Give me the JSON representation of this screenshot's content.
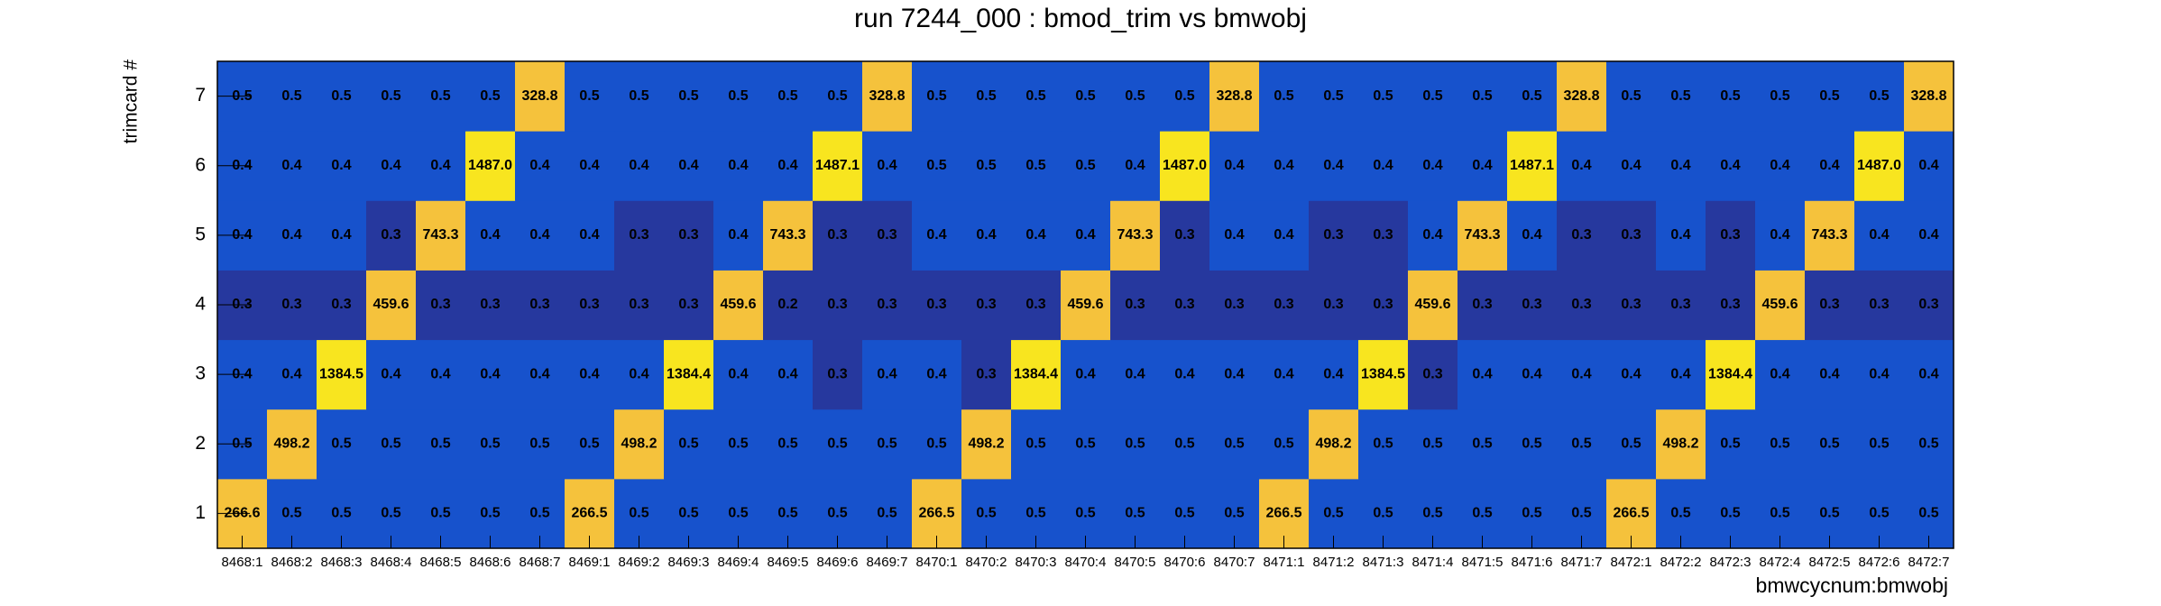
{
  "chart_data": {
    "type": "heatmap",
    "title": "run 7244_000 : bmod_trim vs bmwobj",
    "x_label": "bmwcycnum:bmwobj",
    "y_label": "trimcard #",
    "x_categories": [
      "8468:1",
      "8468:2",
      "8468:3",
      "8468:4",
      "8468:5",
      "8468:6",
      "8468:7",
      "8469:1",
      "8469:2",
      "8469:3",
      "8469:4",
      "8469:5",
      "8469:6",
      "8469:7",
      "8470:1",
      "8470:2",
      "8470:3",
      "8470:4",
      "8470:5",
      "8470:6",
      "8470:7",
      "8471:1",
      "8471:2",
      "8471:3",
      "8471:4",
      "8471:5",
      "8471:6",
      "8471:7",
      "8472:1",
      "8472:2",
      "8472:3",
      "8472:4",
      "8472:5",
      "8472:6",
      "8472:7"
    ],
    "y_categories": [
      1,
      2,
      3,
      4,
      5,
      6,
      7
    ],
    "values": [
      [
        266.6,
        0.5,
        0.5,
        0.5,
        0.5,
        0.5,
        0.5,
        266.5,
        0.5,
        0.5,
        0.5,
        0.5,
        0.5,
        0.5,
        266.5,
        0.5,
        0.5,
        0.5,
        0.5,
        0.5,
        0.5,
        266.5,
        0.5,
        0.5,
        0.5,
        0.5,
        0.5,
        0.5,
        266.5,
        0.5,
        0.5,
        0.5,
        0.5,
        0.5,
        0.5
      ],
      [
        0.5,
        498.2,
        0.5,
        0.5,
        0.5,
        0.5,
        0.5,
        0.5,
        498.2,
        0.5,
        0.5,
        0.5,
        0.5,
        0.5,
        0.5,
        498.2,
        0.5,
        0.5,
        0.5,
        0.5,
        0.5,
        0.5,
        498.2,
        0.5,
        0.5,
        0.5,
        0.5,
        0.5,
        0.5,
        498.2,
        0.5,
        0.5,
        0.5,
        0.5,
        0.5
      ],
      [
        0.4,
        0.4,
        1384.5,
        0.4,
        0.4,
        0.4,
        0.4,
        0.4,
        0.4,
        1384.4,
        0.4,
        0.4,
        0.3,
        0.4,
        0.4,
        0.3,
        1384.4,
        0.4,
        0.4,
        0.4,
        0.4,
        0.4,
        0.4,
        1384.5,
        0.3,
        0.4,
        0.4,
        0.4,
        0.4,
        0.4,
        1384.4,
        0.4,
        0.4,
        0.4,
        0.4
      ],
      [
        0.3,
        0.3,
        0.3,
        459.6,
        0.3,
        0.3,
        0.3,
        0.3,
        0.3,
        0.3,
        459.6,
        0.2,
        0.3,
        0.3,
        0.3,
        0.3,
        0.3,
        459.6,
        0.3,
        0.3,
        0.3,
        0.3,
        0.3,
        0.3,
        459.6,
        0.3,
        0.3,
        0.3,
        0.3,
        0.3,
        0.3,
        459.6,
        0.3,
        0.3,
        0.3
      ],
      [
        0.4,
        0.4,
        0.4,
        0.3,
        743.3,
        0.4,
        0.4,
        0.4,
        0.3,
        0.3,
        0.4,
        743.3,
        0.3,
        0.3,
        0.4,
        0.4,
        0.4,
        0.4,
        743.3,
        0.3,
        0.4,
        0.4,
        0.3,
        0.3,
        0.4,
        743.3,
        0.4,
        0.3,
        0.3,
        0.4,
        0.3,
        0.4,
        743.3,
        0.4,
        0.4
      ],
      [
        0.4,
        0.4,
        0.4,
        0.4,
        0.4,
        1487.0,
        0.4,
        0.4,
        0.4,
        0.4,
        0.4,
        0.4,
        1487.1,
        0.4,
        0.5,
        0.5,
        0.5,
        0.5,
        0.4,
        1487.0,
        0.4,
        0.4,
        0.4,
        0.4,
        0.4,
        0.4,
        1487.1,
        0.4,
        0.4,
        0.4,
        0.4,
        0.4,
        0.4,
        1487.0,
        0.4
      ],
      [
        0.5,
        0.5,
        0.5,
        0.5,
        0.5,
        0.5,
        328.8,
        0.5,
        0.5,
        0.5,
        0.5,
        0.5,
        0.5,
        328.8,
        0.5,
        0.5,
        0.5,
        0.5,
        0.5,
        0.5,
        328.8,
        0.5,
        0.5,
        0.5,
        0.5,
        0.5,
        0.5,
        328.8,
        0.5,
        0.5,
        0.5,
        0.5,
        0.5,
        0.5,
        328.8
      ]
    ],
    "value_labels": [
      [
        "266.6",
        "0.5",
        "0.5",
        "0.5",
        "0.5",
        "0.5",
        "0.5",
        "266.5",
        "0.5",
        "0.5",
        "0.5",
        "0.5",
        "0.5",
        "0.5",
        "266.5",
        "0.5",
        "0.5",
        "0.5",
        "0.5",
        "0.5",
        "0.5",
        "266.5",
        "0.5",
        "0.5",
        "0.5",
        "0.5",
        "0.5",
        "0.5",
        "266.5",
        "0.5",
        "0.5",
        "0.5",
        "0.5",
        "0.5",
        "0.5"
      ],
      [
        "0.5",
        "498.2",
        "0.5",
        "0.5",
        "0.5",
        "0.5",
        "0.5",
        "0.5",
        "498.2",
        "0.5",
        "0.5",
        "0.5",
        "0.5",
        "0.5",
        "0.5",
        "498.2",
        "0.5",
        "0.5",
        "0.5",
        "0.5",
        "0.5",
        "0.5",
        "498.2",
        "0.5",
        "0.5",
        "0.5",
        "0.5",
        "0.5",
        "0.5",
        "498.2",
        "0.5",
        "0.5",
        "0.5",
        "0.5",
        "0.5"
      ],
      [
        "0.4",
        "0.4",
        "1384.5",
        "0.4",
        "0.4",
        "0.4",
        "0.4",
        "0.4",
        "0.4",
        "1384.4",
        "0.4",
        "0.4",
        "0.3",
        "0.4",
        "0.4",
        "0.3",
        "1384.4",
        "0.4",
        "0.4",
        "0.4",
        "0.4",
        "0.4",
        "0.4",
        "1384.5",
        "0.3",
        "0.4",
        "0.4",
        "0.4",
        "0.4",
        "0.4",
        "1384.4",
        "0.4",
        "0.4",
        "0.4",
        "0.4"
      ],
      [
        "0.3",
        "0.3",
        "0.3",
        "459.6",
        "0.3",
        "0.3",
        "0.3",
        "0.3",
        "0.3",
        "0.3",
        "459.6",
        "0.2",
        "0.3",
        "0.3",
        "0.3",
        "0.3",
        "0.3",
        "459.6",
        "0.3",
        "0.3",
        "0.3",
        "0.3",
        "0.3",
        "0.3",
        "459.6",
        "0.3",
        "0.3",
        "0.3",
        "0.3",
        "0.3",
        "0.3",
        "459.6",
        "0.3",
        "0.3",
        "0.3"
      ],
      [
        "0.4",
        "0.4",
        "0.4",
        "0.3",
        "743.3",
        "0.4",
        "0.4",
        "0.4",
        "0.3",
        "0.3",
        "0.4",
        "743.3",
        "0.3",
        "0.3",
        "0.4",
        "0.4",
        "0.4",
        "0.4",
        "743.3",
        "0.3",
        "0.4",
        "0.4",
        "0.3",
        "0.3",
        "0.4",
        "743.3",
        "0.4",
        "0.3",
        "0.3",
        "0.4",
        "0.3",
        "0.4",
        "743.3",
        "0.4",
        "0.4"
      ],
      [
        "0.4",
        "0.4",
        "0.4",
        "0.4",
        "0.4",
        "1487.0",
        "0.4",
        "0.4",
        "0.4",
        "0.4",
        "0.4",
        "0.4",
        "1487.1",
        "0.4",
        "0.5",
        "0.5",
        "0.5",
        "0.5",
        "0.4",
        "1487.0",
        "0.4",
        "0.4",
        "0.4",
        "0.4",
        "0.4",
        "0.4",
        "1487.1",
        "0.4",
        "0.4",
        "0.4",
        "0.4",
        "0.4",
        "0.4",
        "1487.0",
        "0.4"
      ],
      [
        "0.5",
        "0.5",
        "0.5",
        "0.5",
        "0.5",
        "0.5",
        "328.8",
        "0.5",
        "0.5",
        "0.5",
        "0.5",
        "0.5",
        "0.5",
        "328.8",
        "0.5",
        "0.5",
        "0.5",
        "0.5",
        "0.5",
        "0.5",
        "328.8",
        "0.5",
        "0.5",
        "0.5",
        "0.5",
        "0.5",
        "0.5",
        "328.8",
        "0.5",
        "0.5",
        "0.5",
        "0.5",
        "0.5",
        "0.5",
        "328.8"
      ]
    ]
  }
}
